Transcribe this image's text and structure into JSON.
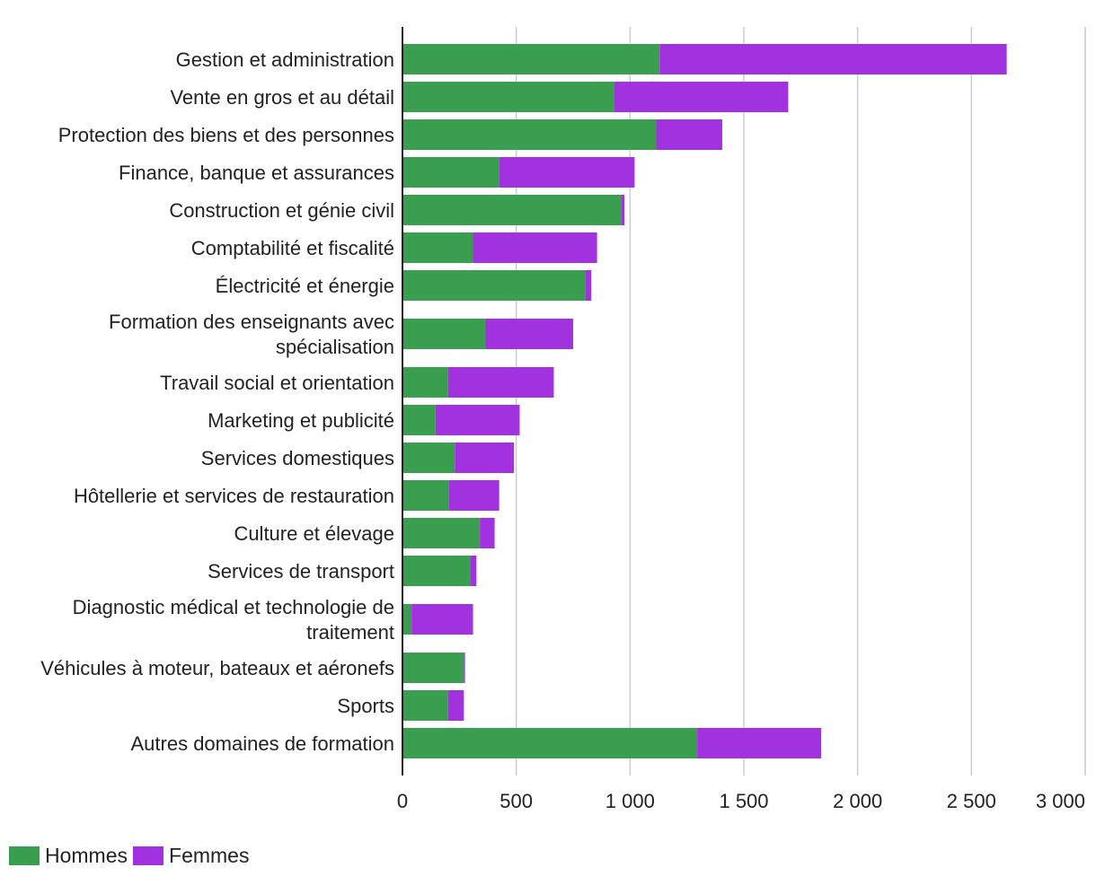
{
  "chart_data": {
    "type": "bar",
    "orientation": "horizontal",
    "stacked": true,
    "categories": [
      "Gestion et administration",
      "Vente en gros et au détail",
      "Protection des biens et des personnes",
      "Finance, banque et assurances",
      "Construction et génie civil",
      "Comptabilité et fiscalité",
      "Électricité et énergie",
      "Formation des enseignants avec spécialisation",
      "Travail social et orientation",
      "Marketing et publicité",
      "Services domestiques",
      "Hôtellerie et services de restauration",
      "Culture et élevage",
      "Services de transport",
      "Diagnostic médical et technologie de traitement",
      "Véhicules à moteur, bateaux et aéronefs",
      "Sports",
      "Autres domaines de formation"
    ],
    "category_lines": [
      [
        "Gestion et administration"
      ],
      [
        "Vente en gros et au détail"
      ],
      [
        "Protection des biens et des personnes"
      ],
      [
        "Finance, banque et assurances"
      ],
      [
        "Construction et génie civil"
      ],
      [
        "Comptabilité et fiscalité"
      ],
      [
        "Électricité et énergie"
      ],
      [
        "Formation des enseignants avec",
        "spécialisation"
      ],
      [
        "Travail social et orientation"
      ],
      [
        "Marketing et publicité"
      ],
      [
        "Services domestiques"
      ],
      [
        "Hôtellerie et services de restauration"
      ],
      [
        "Culture et élevage"
      ],
      [
        "Services de transport"
      ],
      [
        "Diagnostic médical et technologie de",
        "traitement"
      ],
      [
        "Véhicules à moteur, bateaux et aéronefs"
      ],
      [
        "Sports"
      ],
      [
        "Autres domaines de formation"
      ]
    ],
    "series": [
      {
        "name": "Hommes",
        "color": "#3a9e4f",
        "values": [
          1130,
          930,
          1115,
          425,
          960,
          310,
          805,
          365,
          200,
          145,
          230,
          205,
          340,
          300,
          40,
          270,
          200,
          1295
        ]
      },
      {
        "name": "Femmes",
        "color": "#a232e0",
        "values": [
          1525,
          765,
          290,
          595,
          15,
          545,
          25,
          385,
          465,
          370,
          260,
          220,
          65,
          25,
          270,
          5,
          70,
          545
        ]
      }
    ],
    "xlim": [
      0,
      3000
    ],
    "xticks": [
      0,
      500,
      1000,
      1500,
      2000,
      2500,
      3000
    ],
    "xtick_labels": [
      "0",
      "500",
      "1 000",
      "1 500",
      "2 000",
      "2 500",
      "3 000"
    ],
    "grid": true,
    "legend_position": "bottom-left",
    "title": "",
    "xlabel": "",
    "ylabel": ""
  }
}
